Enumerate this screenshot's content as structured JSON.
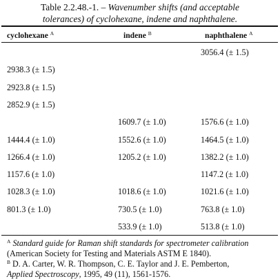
{
  "caption": {
    "prefix": "Table 2.2.48.-1. – ",
    "italic_line1": "Wavenumber shifts (and acceptable",
    "italic_line2": "tolerances) of cyclohexane, indene and naphthalene."
  },
  "columns": [
    {
      "name": "cyclohexane",
      "mark": "A"
    },
    {
      "name": "indene",
      "mark": "B"
    },
    {
      "name": "naphthalene",
      "mark": "A"
    }
  ],
  "rows": [
    [
      "",
      "",
      "3056.4 (± 1.5)"
    ],
    [
      "2938.3 (± 1.5)",
      "",
      ""
    ],
    [
      "2923.8 (± 1.5)",
      "",
      ""
    ],
    [
      "2852.9 (± 1.5)",
      "",
      ""
    ],
    [
      "",
      "1609.7 (± 1.0)",
      "1576.6 (± 1.0)"
    ],
    [
      "1444.4 (± 1.0)",
      "1552.6 (± 1.0)",
      "1464.5 (± 1.0)"
    ],
    [
      "1266.4 (± 1.0)",
      "1205.2 (± 1.0)",
      "1382.2 (± 1.0)"
    ],
    [
      "1157.6 (± 1.0)",
      "",
      "1147.2 (± 1.0)"
    ],
    [
      "1028.3 (± 1.0)",
      "1018.6 (± 1.0)",
      "1021.6 (± 1.0)"
    ],
    [
      "801.3 (± 1.0)",
      "730.5 (± 1.0)",
      "763.8 (± 1.0)"
    ],
    [
      "",
      "533.9 (± 1.0)",
      "513.8 (± 1.0)"
    ]
  ],
  "footnotes": {
    "a_mark": "A",
    "a_italic": "Standard guide for Raman shift standards for spectrometer calibration",
    "a_rest": " (American Society for Testing and Materials ASTM E 1840).",
    "b_mark": "B",
    "b_line1": " D. A. Carter, W. R. Thompson, C. E. Taylor and J. E. Pemberton,",
    "b_italic": "Applied Spectroscopy",
    "b_line2_rest": ", 1995, 49 (11), 1561-1576."
  }
}
